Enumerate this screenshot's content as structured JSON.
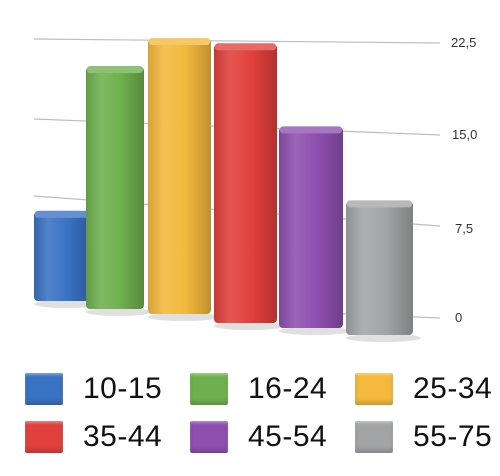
{
  "chart_data": {
    "type": "bar",
    "categories": [
      "10-15",
      "16-24",
      "25-34",
      "35-44",
      "45-54",
      "55-75"
    ],
    "values": [
      9.3,
      22.0,
      23.3,
      22.3,
      15.8,
      10.2
    ],
    "colors": [
      "#3a72c4",
      "#6fb04e",
      "#f4b93d",
      "#e2403c",
      "#8e4fb0",
      "#a3a4a6"
    ],
    "yticks": [
      "0",
      "7,5",
      "15,0",
      "22,5"
    ],
    "ytick_values": [
      0,
      7.5,
      15.0,
      22.5
    ],
    "ylim": [
      0,
      25
    ],
    "grid": true,
    "legend_position": "bottom",
    "title": "",
    "xlabel": "",
    "ylabel": ""
  },
  "legend": [
    {
      "label": "10-15",
      "color": "#3a72c4"
    },
    {
      "label": "16-24",
      "color": "#6fb04e"
    },
    {
      "label": "25-34",
      "color": "#f4b93d"
    },
    {
      "label": "35-44",
      "color": "#e2403c"
    },
    {
      "label": "45-54",
      "color": "#8e4fb0"
    },
    {
      "label": "55-75",
      "color": "#a3a4a6"
    }
  ]
}
